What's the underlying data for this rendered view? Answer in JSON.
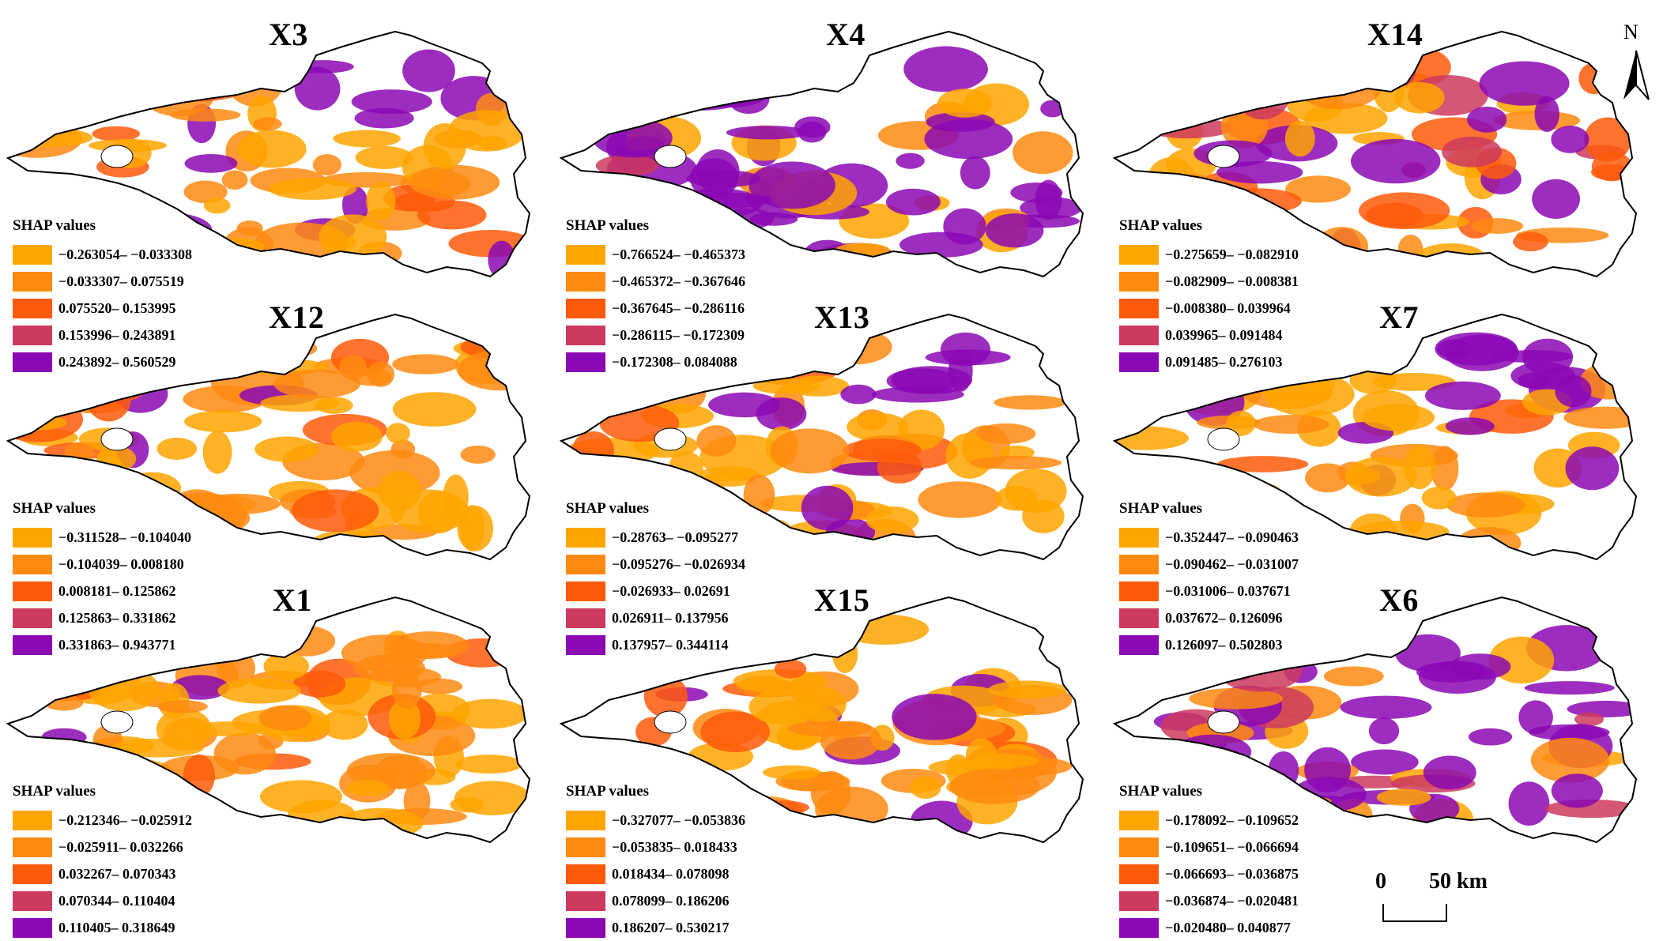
{
  "legend_title": "SHAP values",
  "colors": [
    "#FFA500",
    "#FF8A10",
    "#FF5A0A",
    "#CC3A5E",
    "#8B08B4"
  ],
  "panels": [
    {
      "title": "X3",
      "classes": [
        "−0.263054– −0.033308",
        "−0.033307– 0.075519",
        "0.075520– 0.153995",
        "0.153996– 0.243891",
        "0.243892– 0.560529"
      ],
      "dominant": "mixed-purple-north"
    },
    {
      "title": "X4",
      "classes": [
        "−0.766524– −0.465373",
        "−0.465372– −0.367646",
        "−0.367645– −0.286116",
        "−0.286115– −0.172309",
        "−0.172308– 0.084088"
      ],
      "dominant": "purple"
    },
    {
      "title": "X14",
      "classes": [
        "−0.275659– −0.082910",
        "−0.082909– −0.008381",
        "−0.008380– 0.039964",
        "0.039965– 0.091484",
        "0.091485– 0.276103"
      ],
      "dominant": "mixed"
    },
    {
      "title": "X12",
      "classes": [
        "−0.311528– −0.104040",
        "−0.104039– 0.008180",
        "0.008181– 0.125862",
        "0.125863– 0.331862",
        "0.331863– 0.943771"
      ],
      "dominant": "orange"
    },
    {
      "title": "X13",
      "classes": [
        "−0.28763– −0.095277",
        "−0.095276– −0.026934",
        "−0.026933– 0.02691",
        "0.026911– 0.137956",
        "0.137957– 0.344114"
      ],
      "dominant": "orange-purple-north"
    },
    {
      "title": "X7",
      "classes": [
        "−0.352447– −0.090463",
        "−0.090462– −0.031007",
        "−0.031006– 0.037671",
        "0.037672– 0.126096",
        "0.126097– 0.502803"
      ],
      "dominant": "orange-purple-north"
    },
    {
      "title": "X1",
      "classes": [
        "−0.212346– −0.025912",
        "−0.025911– 0.032266",
        "0.032267– 0.070343",
        "0.070344– 0.110404",
        "0.110405– 0.318649"
      ],
      "dominant": "orange"
    },
    {
      "title": "X15",
      "classes": [
        "−0.327077– −0.053836",
        "−0.053835– 0.018433",
        "0.018434– 0.078098",
        "0.078099– 0.186206",
        "0.186207– 0.530217"
      ],
      "dominant": "orange"
    },
    {
      "title": "X6",
      "classes": [
        "−0.178092– −0.109652",
        "−0.109651– −0.066694",
        "−0.066693– −0.036875",
        "−0.036874– −0.020481",
        "−0.020480– 0.040877"
      ],
      "dominant": "purple"
    }
  ],
  "north_label": "N",
  "scale": {
    "zero": "0",
    "distance": "50 km"
  }
}
